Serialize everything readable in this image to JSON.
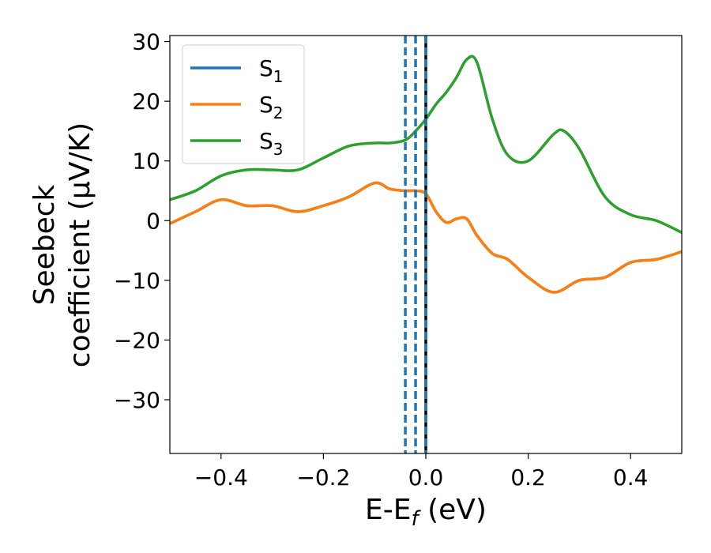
{
  "chart_data": {
    "type": "line",
    "title": "",
    "xlabel": "E-E",
    "xlabel_sub": "f",
    "xlabel_unit": " (eV)",
    "ylabel_line1": "Seebeck",
    "ylabel_line2": "coefficient  (μV/K)",
    "xlim": [
      -0.5,
      0.5
    ],
    "ylim": [
      -39,
      31
    ],
    "xticks": [
      -0.4,
      -0.2,
      0.0,
      0.2,
      0.4
    ],
    "xtick_labels": [
      "−0.4",
      "−0.2",
      "0.0",
      "0.2",
      "0.4"
    ],
    "yticks": [
      -30,
      -20,
      -10,
      0,
      10,
      20,
      30
    ],
    "ytick_labels": [
      "−30",
      "−20",
      "−10",
      "0",
      "10",
      "20",
      "30"
    ],
    "grid": false,
    "legend_position": "top-left",
    "series": [
      {
        "name": "S",
        "sub": "1",
        "color": "#1f77b4",
        "x": [
          -0.5,
          -0.45,
          -0.4,
          -0.35,
          -0.3,
          -0.25,
          -0.2,
          -0.15,
          -0.1,
          -0.07,
          -0.04,
          -0.02,
          0.0,
          0.02,
          0.04,
          0.06,
          0.08,
          0.1,
          0.13,
          0.16,
          0.2,
          0.25,
          0.3,
          0.35,
          0.4,
          0.45,
          0.5
        ],
        "y": [
          -0.5,
          1.5,
          3.5,
          2.5,
          2.5,
          1.5,
          2.5,
          4,
          6.3,
          5.3,
          5,
          5,
          4.5,
          1.5,
          -0.3,
          0.3,
          0.3,
          -2.5,
          -5.5,
          -6.5,
          -9.5,
          -12,
          -10,
          -9.5,
          -7,
          -6.5,
          -5.2
        ]
      },
      {
        "name": "S",
        "sub": "2",
        "color": "#ff7f0e",
        "x": [
          -0.5,
          -0.45,
          -0.4,
          -0.35,
          -0.3,
          -0.25,
          -0.2,
          -0.15,
          -0.1,
          -0.07,
          -0.04,
          -0.02,
          0.0,
          0.02,
          0.04,
          0.06,
          0.08,
          0.1,
          0.13,
          0.16,
          0.2,
          0.25,
          0.3,
          0.35,
          0.4,
          0.45,
          0.5
        ],
        "y": [
          -0.5,
          1.5,
          3.5,
          2.5,
          2.5,
          1.5,
          2.5,
          4,
          6.3,
          5.3,
          5,
          5,
          4.5,
          1.5,
          -0.3,
          0.3,
          0.3,
          -2.5,
          -5.5,
          -6.5,
          -9.5,
          -12,
          -10,
          -9.5,
          -7,
          -6.5,
          -5.2
        ]
      },
      {
        "name": "S",
        "sub": "3",
        "color": "#2ca02c",
        "x": [
          -0.5,
          -0.45,
          -0.4,
          -0.35,
          -0.3,
          -0.25,
          -0.2,
          -0.15,
          -0.1,
          -0.07,
          -0.04,
          -0.02,
          0.0,
          0.02,
          0.04,
          0.06,
          0.08,
          0.1,
          0.13,
          0.16,
          0.2,
          0.25,
          0.27,
          0.3,
          0.35,
          0.4,
          0.45,
          0.5
        ],
        "y": [
          3.5,
          5,
          7.5,
          8.5,
          8.5,
          8.5,
          10.5,
          12.5,
          13,
          13,
          13.5,
          15,
          17,
          19.5,
          21.5,
          24,
          27,
          26.5,
          17,
          11,
          10,
          14.5,
          15,
          12,
          4,
          1,
          0,
          -2
        ]
      }
    ],
    "vlines": [
      {
        "x": -0.04,
        "color": "#1f77b4",
        "style": "dashed"
      },
      {
        "x": -0.02,
        "color": "#1f77b4",
        "style": "dashed"
      },
      {
        "x": 0.0,
        "color": "#000000",
        "style": "solid"
      },
      {
        "x": 0.0,
        "color": "#1f77b4",
        "style": "dashed"
      }
    ]
  }
}
